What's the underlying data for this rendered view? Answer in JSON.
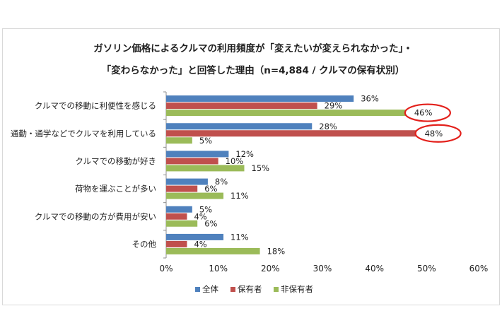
{
  "chart_data": {
    "type": "bar",
    "orientation": "horizontal",
    "title_line1": "ガソリン価格によるクルマの利用頻度が「変えたいが変えられなかった」・",
    "title_line2": "「変わらなかった」と回答した理由（n=4,884 / クルマの保有状別）",
    "categories": [
      "クルマでの移動に利便性を感じる",
      "通勤・通学などでクルマを利用している",
      "クルマでの移動が好き",
      "荷物を運ぶことが多い",
      "クルマでの移動の方が費用が安い",
      "その他"
    ],
    "series": [
      {
        "name": "全体",
        "color": "#4f81bd",
        "values": [
          36,
          28,
          12,
          8,
          5,
          11
        ]
      },
      {
        "name": "保有者",
        "color": "#c0504d",
        "values": [
          29,
          48,
          10,
          6,
          4,
          4
        ]
      },
      {
        "name": "非保有者",
        "color": "#9bbb59",
        "values": [
          46,
          5,
          15,
          11,
          6,
          18
        ]
      }
    ],
    "xlim": [
      0,
      60
    ],
    "xticks": [
      0,
      10,
      20,
      30,
      40,
      50,
      60
    ],
    "tick_suffix": "%",
    "highlight_color": "#e3201b",
    "highlights": [
      {
        "category_index": 0,
        "series_index": 2
      },
      {
        "category_index": 1,
        "series_index": 1
      }
    ],
    "legend_position": "bottom",
    "grid": false
  }
}
